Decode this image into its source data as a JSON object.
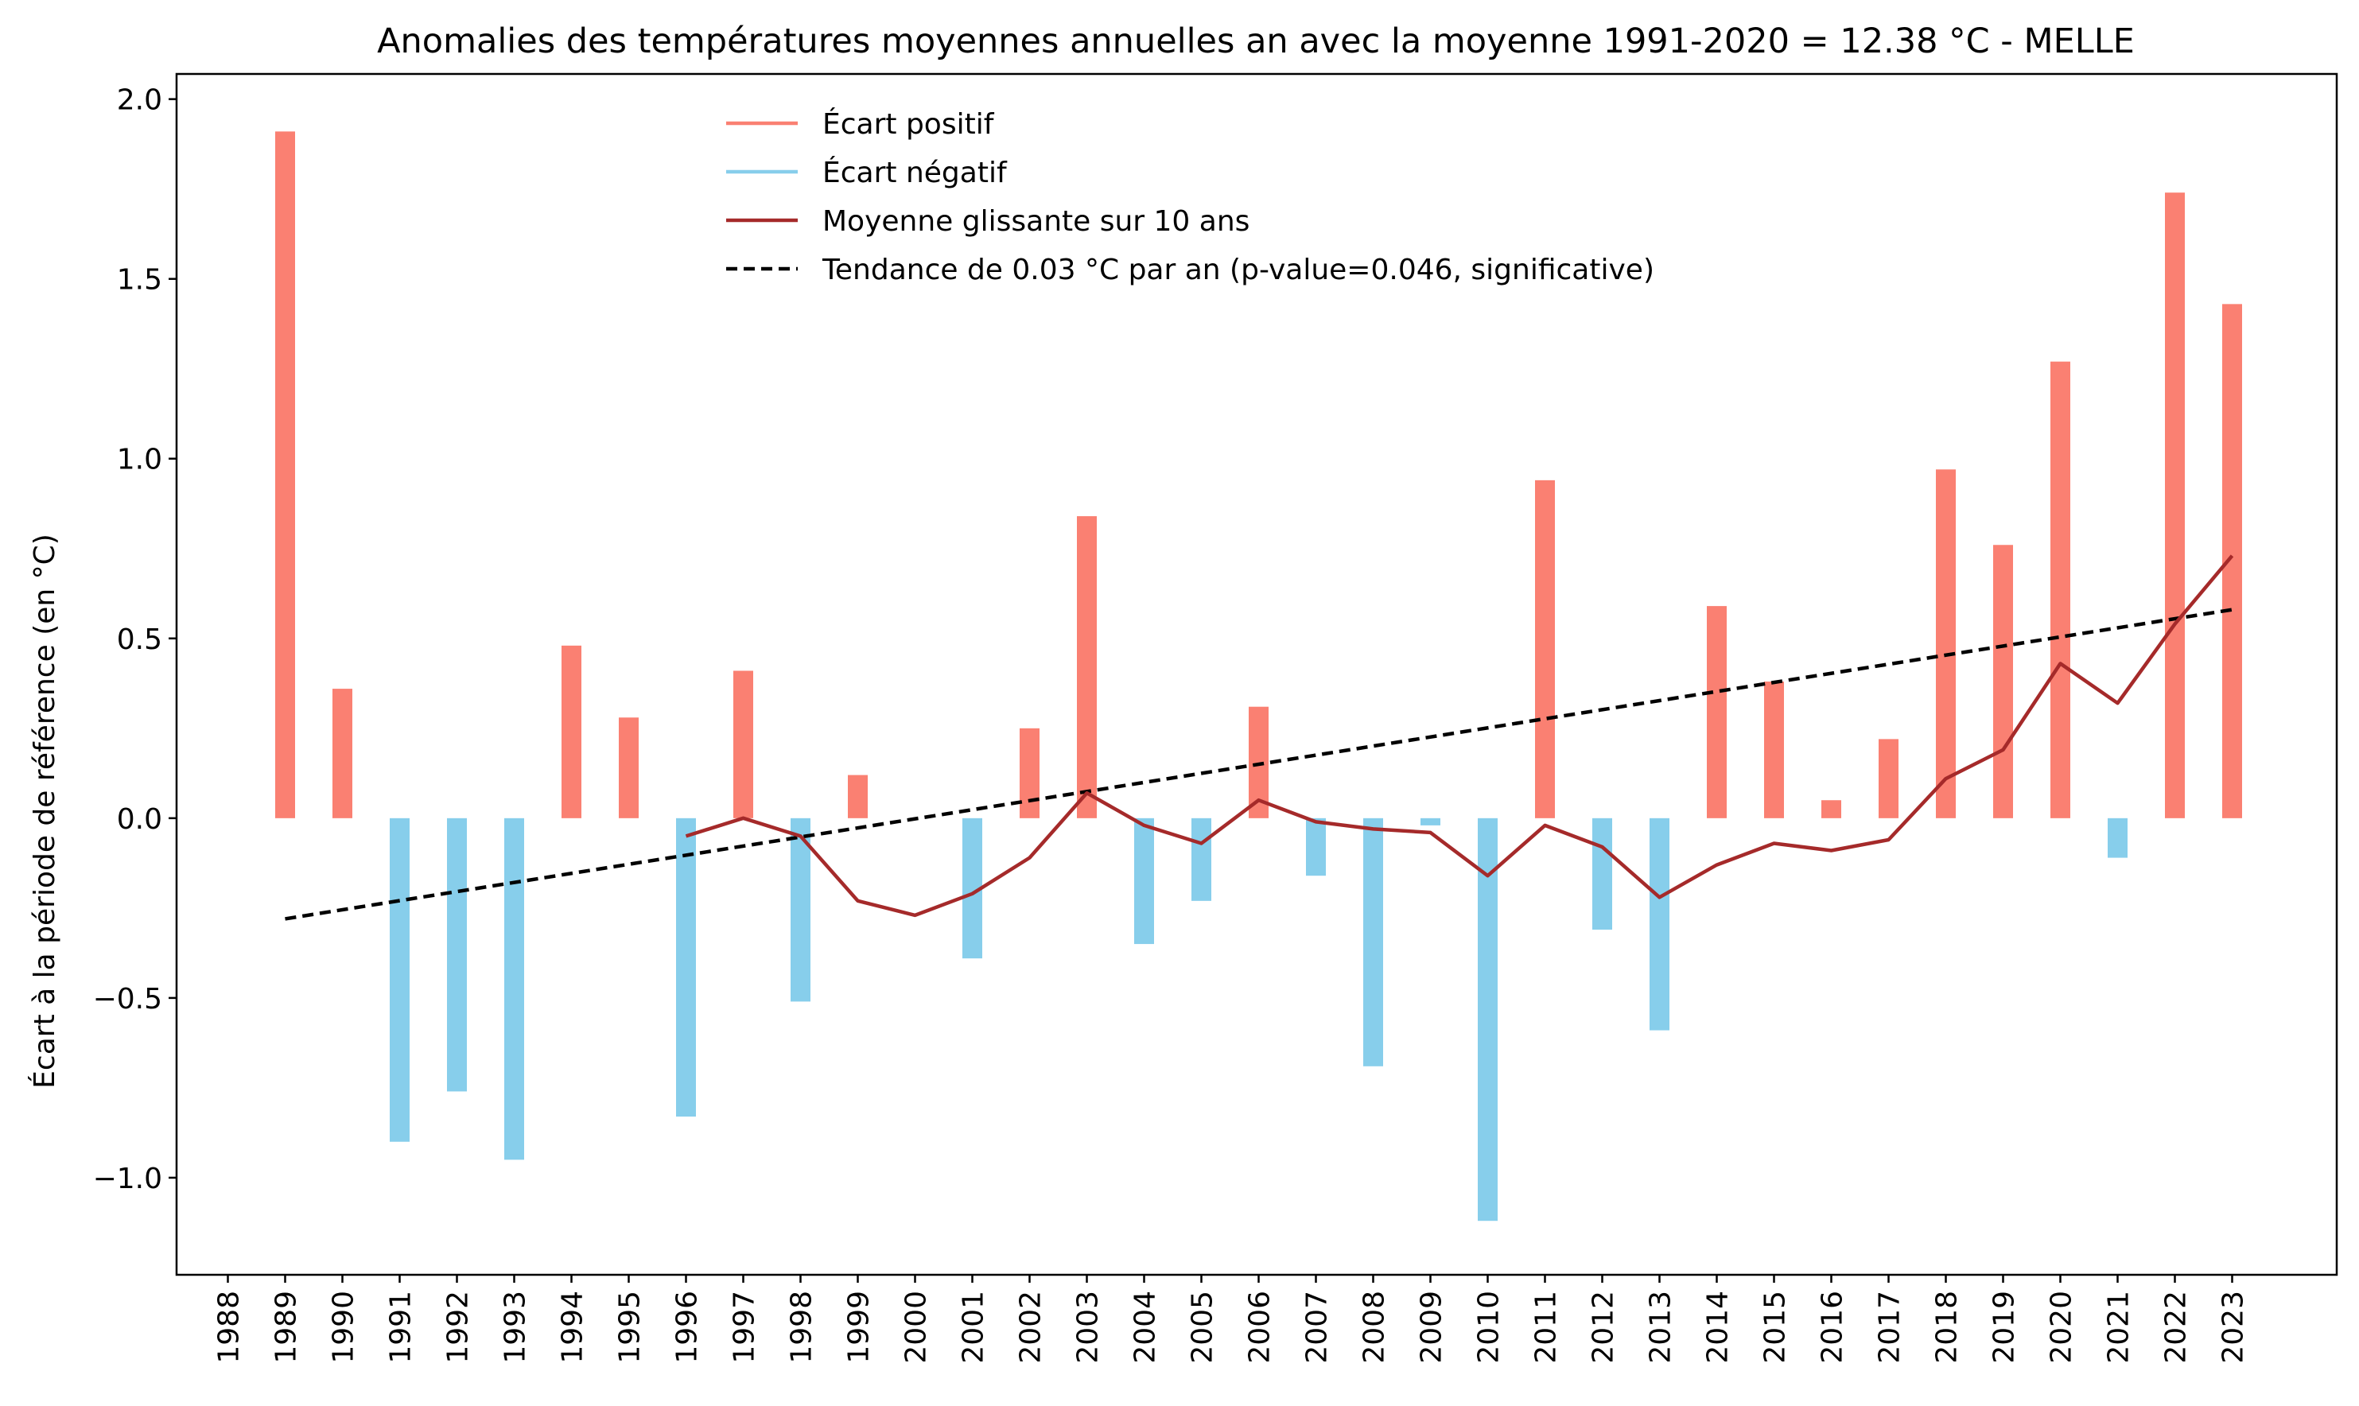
{
  "chart_data": {
    "type": "bar",
    "title": "Anomalies des températures moyennes annuelles an avec la moyenne 1991-2020 = 12.38 °C - MELLE",
    "xlabel": "",
    "ylabel": "Écart à la période de référence (en °C)",
    "ylim": [
      -1.27,
      2.07
    ],
    "yticks": [
      -1.0,
      -0.5,
      0.0,
      0.5,
      1.0,
      1.5,
      2.0
    ],
    "ytick_labels": [
      "−1.0",
      "−0.5",
      "0.0",
      "0.5",
      "1.0",
      "1.5",
      "2.0"
    ],
    "categories": [
      "1988",
      "1989",
      "1990",
      "1991",
      "1992",
      "1993",
      "1994",
      "1995",
      "1996",
      "1997",
      "1998",
      "1999",
      "2000",
      "2001",
      "2002",
      "2003",
      "2004",
      "2005",
      "2006",
      "2007",
      "2008",
      "2009",
      "2010",
      "2011",
      "2012",
      "2013",
      "2014",
      "2015",
      "2016",
      "2017",
      "2018",
      "2019",
      "2020",
      "2021",
      "2022",
      "2023"
    ],
    "values": [
      null,
      1.91,
      0.36,
      -0.9,
      -0.76,
      -0.95,
      0.48,
      0.28,
      -0.83,
      0.41,
      -0.51,
      0.12,
      0.0,
      -0.39,
      0.25,
      0.84,
      -0.35,
      -0.23,
      0.31,
      -0.16,
      -0.69,
      -0.02,
      -1.12,
      0.94,
      -0.31,
      -0.59,
      0.59,
      0.38,
      0.05,
      0.22,
      0.97,
      0.76,
      1.27,
      -0.11,
      1.74,
      1.43
    ],
    "rolling_mean": [
      null,
      null,
      null,
      null,
      null,
      null,
      null,
      null,
      -0.05,
      0.0,
      -0.05,
      -0.23,
      -0.27,
      -0.21,
      -0.11,
      0.07,
      -0.02,
      -0.07,
      0.05,
      -0.01,
      -0.03,
      -0.04,
      -0.16,
      -0.02,
      -0.08,
      -0.22,
      -0.13,
      -0.07,
      -0.09,
      -0.06,
      0.11,
      0.19,
      0.43,
      0.32,
      0.54,
      0.73
    ],
    "trend": {
      "start_year": "1989",
      "start_value": -0.28,
      "end_year": "2023",
      "end_value": 0.58
    },
    "colors": {
      "positive": "#fa8072",
      "negative": "#87ceeb",
      "rolling": "#a52a2a",
      "trend": "#000000"
    },
    "legend": {
      "position": "top-center",
      "items": [
        {
          "label": "Écart positif",
          "style": "positive"
        },
        {
          "label": "Écart négatif",
          "style": "negative"
        },
        {
          "label": "Moyenne glissante sur 10 ans",
          "style": "rolling"
        },
        {
          "label": "Tendance de 0.03 °C par an (p-value=0.046, significative)",
          "style": "trend"
        }
      ]
    }
  }
}
